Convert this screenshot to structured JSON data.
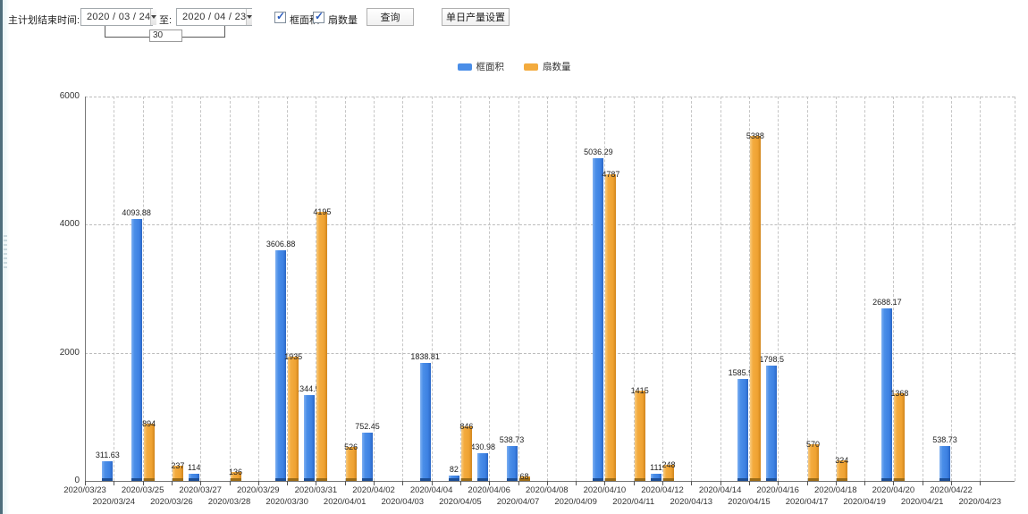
{
  "toolbar": {
    "title_label": "主计划结束时间:",
    "date_from": "2020 / 03 / 24",
    "to_label": "至:",
    "date_to": "2020 / 04 / 23",
    "days_between": "30",
    "checkbox_frame_area": {
      "label": "框面积",
      "checked": true,
      "mark": "✓"
    },
    "checkbox_fan_count": {
      "label": "扇数量",
      "checked": true,
      "mark": "✓"
    },
    "query_button": "查询",
    "daily_output_button": "单日产量设置"
  },
  "legend": {
    "items": [
      {
        "label": "框面积",
        "color": "#4a8ee8"
      },
      {
        "label": "扇数量",
        "color": "#f3ab3e"
      }
    ]
  },
  "chart_data": {
    "type": "bar",
    "title": "",
    "xlabel": "",
    "ylabel": "",
    "ylim": [
      0,
      6000
    ],
    "yticks": [
      0,
      2000,
      4000,
      6000
    ],
    "grid": true,
    "legend_position": "top-center",
    "categories": [
      "2020/03/23",
      "2020/03/24",
      "2020/03/25",
      "2020/03/26",
      "2020/03/27",
      "2020/03/28",
      "2020/03/29",
      "2020/03/30",
      "2020/03/31",
      "2020/04/01",
      "2020/04/02",
      "2020/04/03",
      "2020/04/04",
      "2020/04/05",
      "2020/04/06",
      "2020/04/07",
      "2020/04/08",
      "2020/04/09",
      "2020/04/10",
      "2020/04/11",
      "2020/04/12",
      "2020/04/13",
      "2020/04/14",
      "2020/04/15",
      "2020/04/16",
      "2020/04/17",
      "2020/04/18",
      "2020/04/19",
      "2020/04/20",
      "2020/04/21",
      "2020/04/22",
      "2020/04/23"
    ],
    "series": [
      {
        "name": "框面积",
        "color": "#4a8ee8",
        "values": [
          null,
          311.63,
          4093.88,
          null,
          114,
          null,
          null,
          3606.88,
          1344.95,
          null,
          752.45,
          null,
          1838.81,
          82,
          430.98,
          538.73,
          null,
          null,
          5036.29,
          null,
          111,
          null,
          null,
          1585.96,
          1798.5,
          null,
          null,
          null,
          2688.17,
          null,
          538.73,
          null
        ]
      },
      {
        "name": "扇数量",
        "color": "#f3ab3e",
        "values": [
          null,
          null,
          894,
          237,
          null,
          136,
          null,
          1935,
          4195,
          526,
          null,
          null,
          null,
          846,
          null,
          68,
          null,
          null,
          4787,
          1415,
          248,
          null,
          null,
          5388,
          null,
          570,
          324,
          null,
          1368,
          null,
          null,
          null
        ]
      }
    ]
  }
}
